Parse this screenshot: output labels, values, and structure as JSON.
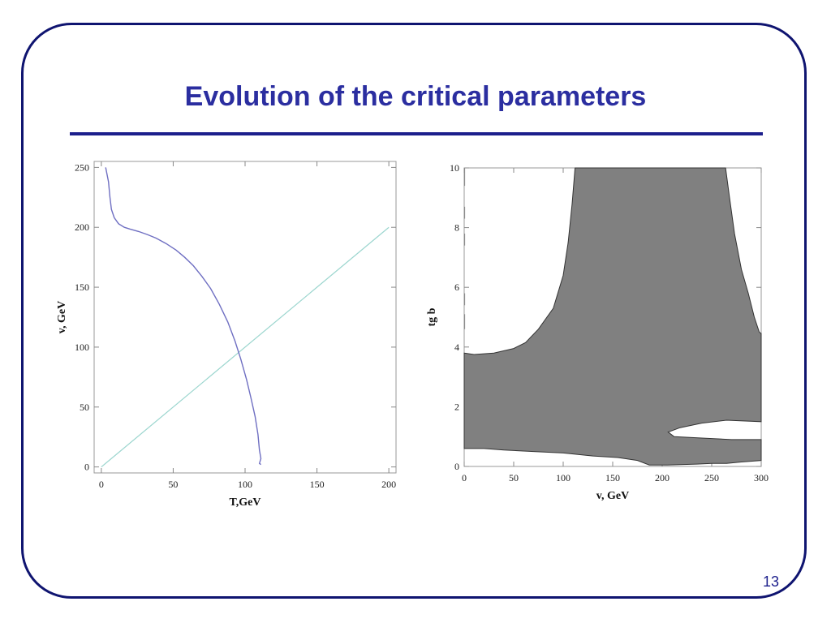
{
  "slide": {
    "title": "Evolution of the critical parameters",
    "page_number": "13"
  },
  "colors": {
    "frame": "#0f1470",
    "title": "#2b2ea0",
    "fill_region": "#808080",
    "curve": "#6f6fc2",
    "diagonal": "#9cd6cf"
  },
  "chart_data": [
    {
      "type": "line",
      "xlabel": "T,GeV",
      "ylabel": "v, GeV",
      "xlim": [
        -5,
        205
      ],
      "ylim": [
        -5,
        255
      ],
      "xticks": [
        0,
        50,
        100,
        150,
        200
      ],
      "yticks": [
        0,
        50,
        100,
        150,
        200,
        250
      ],
      "grid": false,
      "series": [
        {
          "values_kind": "curve",
          "points": [
            [
              3,
              250
            ],
            [
              5,
              238
            ],
            [
              6,
              225
            ],
            [
              7,
              215
            ],
            [
              9,
              208
            ],
            [
              12,
              203
            ],
            [
              16,
              200
            ],
            [
              20,
              198.5
            ],
            [
              26,
              196.5
            ],
            [
              32,
              194
            ],
            [
              38,
              191
            ],
            [
              45,
              186.5
            ],
            [
              52,
              181
            ],
            [
              58,
              175
            ],
            [
              64,
              168
            ],
            [
              70,
              159
            ],
            [
              76,
              149
            ],
            [
              82,
              136
            ],
            [
              88,
              121
            ],
            [
              93,
              105
            ],
            [
              97,
              90
            ],
            [
              101,
              73
            ],
            [
              104,
              58
            ],
            [
              107,
              42
            ],
            [
              109,
              27
            ],
            [
              110,
              14
            ],
            [
              111,
              7
            ],
            [
              110,
              3
            ],
            [
              111,
              2
            ]
          ]
        },
        {
          "values_kind": "diagonal",
          "points": [
            [
              0,
              0
            ],
            [
              200,
              200
            ]
          ]
        }
      ]
    },
    {
      "type": "area",
      "xlabel": "v,  GeV",
      "ylabel": "tg b",
      "xlim": [
        0,
        300
      ],
      "ylim": [
        0,
        10
      ],
      "xticks": [
        0,
        50,
        100,
        150,
        200,
        250,
        300
      ],
      "yticks": [
        0,
        2,
        4,
        6,
        8,
        10
      ],
      "grid": false,
      "region_boundary": [
        [
          0,
          3.8
        ],
        [
          10,
          3.75
        ],
        [
          30,
          3.8
        ],
        [
          50,
          3.95
        ],
        [
          62,
          4.15
        ],
        [
          75,
          4.6
        ],
        [
          90,
          5.3
        ],
        [
          100,
          6.4
        ],
        [
          105,
          7.5
        ],
        [
          109,
          8.8
        ],
        [
          112,
          10
        ],
        [
          264,
          10
        ],
        [
          268,
          9.0
        ],
        [
          273,
          7.8
        ],
        [
          280,
          6.6
        ],
        [
          287,
          5.8
        ],
        [
          293,
          5.0
        ],
        [
          298,
          4.5
        ],
        [
          300,
          4.45
        ],
        [
          300,
          1.5
        ],
        [
          265,
          1.55
        ],
        [
          240,
          1.45
        ],
        [
          218,
          1.3
        ],
        [
          206,
          1.15
        ],
        [
          212,
          1.0
        ],
        [
          240,
          0.95
        ],
        [
          270,
          0.9
        ],
        [
          300,
          0.9
        ],
        [
          300,
          0.2
        ],
        [
          280,
          0.15
        ],
        [
          265,
          0.1
        ],
        [
          250,
          0.1
        ],
        [
          235,
          0.08
        ],
        [
          205,
          0.05
        ],
        [
          187,
          0.05
        ],
        [
          175,
          0.2
        ],
        [
          155,
          0.3
        ],
        [
          130,
          0.35
        ],
        [
          100,
          0.45
        ],
        [
          70,
          0.5
        ],
        [
          40,
          0.55
        ],
        [
          20,
          0.6
        ],
        [
          0,
          0.6
        ]
      ],
      "dashed_marks": [
        [
          0.5,
          10
        ],
        [
          0.5,
          9.4
        ],
        [
          0.5,
          8.7
        ],
        [
          0.5,
          8.3
        ],
        [
          0.5,
          7.8
        ],
        [
          0.5,
          7.4
        ],
        [
          0.5,
          5.8
        ],
        [
          0.5,
          5.4
        ],
        [
          0.5,
          5.1
        ],
        [
          0.5,
          4.6
        ]
      ]
    }
  ]
}
